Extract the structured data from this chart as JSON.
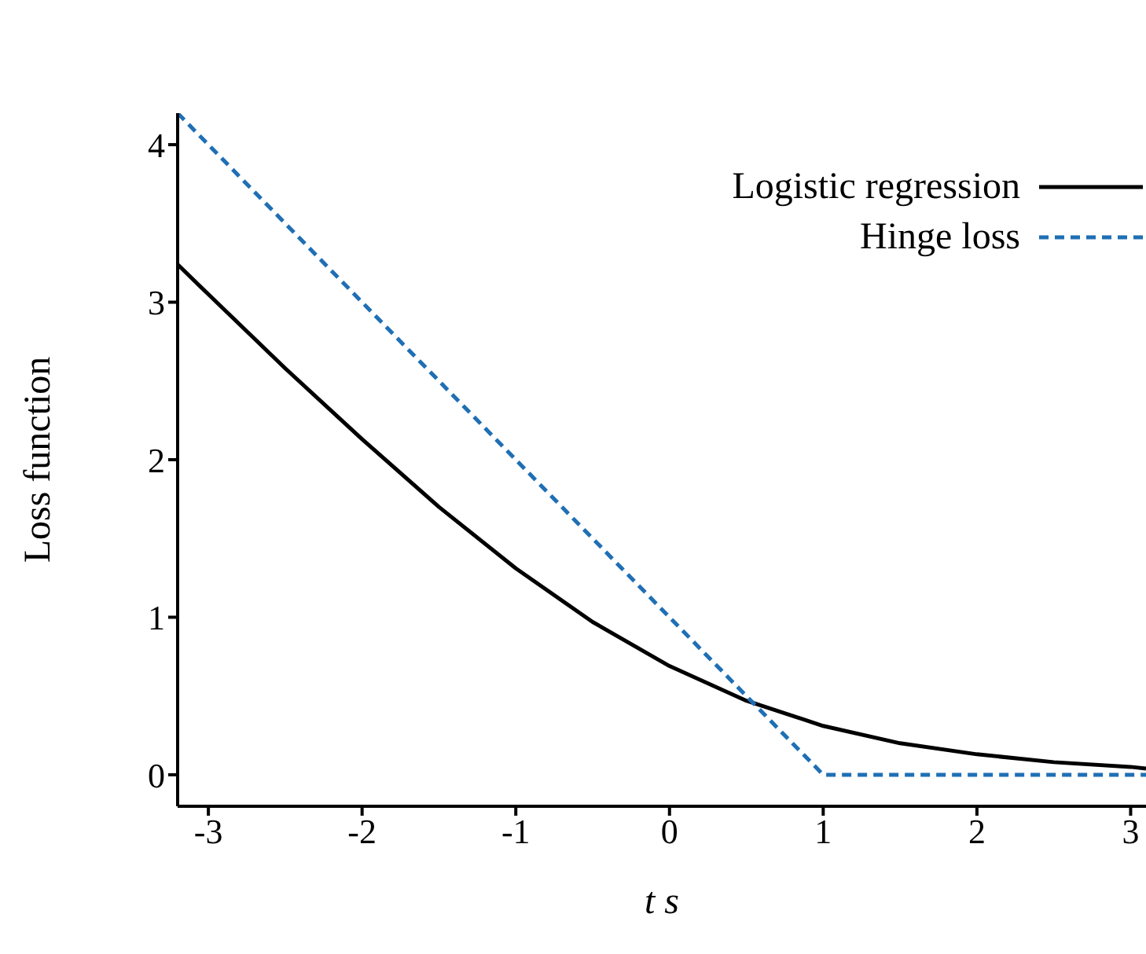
{
  "chart_data": {
    "type": "line",
    "xlabel": "t s",
    "ylabel": "Loss function",
    "xlim": [
      -3.2,
      3.1
    ],
    "ylim": [
      -0.2,
      4.2
    ],
    "xticks": [
      -3,
      -2,
      -1,
      0,
      1,
      2,
      3
    ],
    "yticks": [
      0,
      1,
      2,
      3,
      4
    ],
    "grid": false,
    "legend": "top right",
    "marker": "none",
    "series": [
      {
        "name": "Logistic regression",
        "color": "#000000",
        "line_style": "solid",
        "x": [
          -3.2,
          -3,
          -2.5,
          -2,
          -1.5,
          -1,
          -0.5,
          0,
          0.5,
          1,
          1.5,
          2,
          2.5,
          3,
          3.1
        ],
        "values": [
          3.24,
          3.05,
          2.58,
          2.13,
          1.7,
          1.31,
          0.97,
          0.69,
          0.47,
          0.31,
          0.2,
          0.13,
          0.08,
          0.05,
          0.04
        ]
      },
      {
        "name": "Hinge loss",
        "color": "#1f6fb4",
        "line_style": "dashed",
        "x": [
          -3.2,
          1,
          3.1
        ],
        "values": [
          4.2,
          0,
          0
        ]
      }
    ]
  }
}
